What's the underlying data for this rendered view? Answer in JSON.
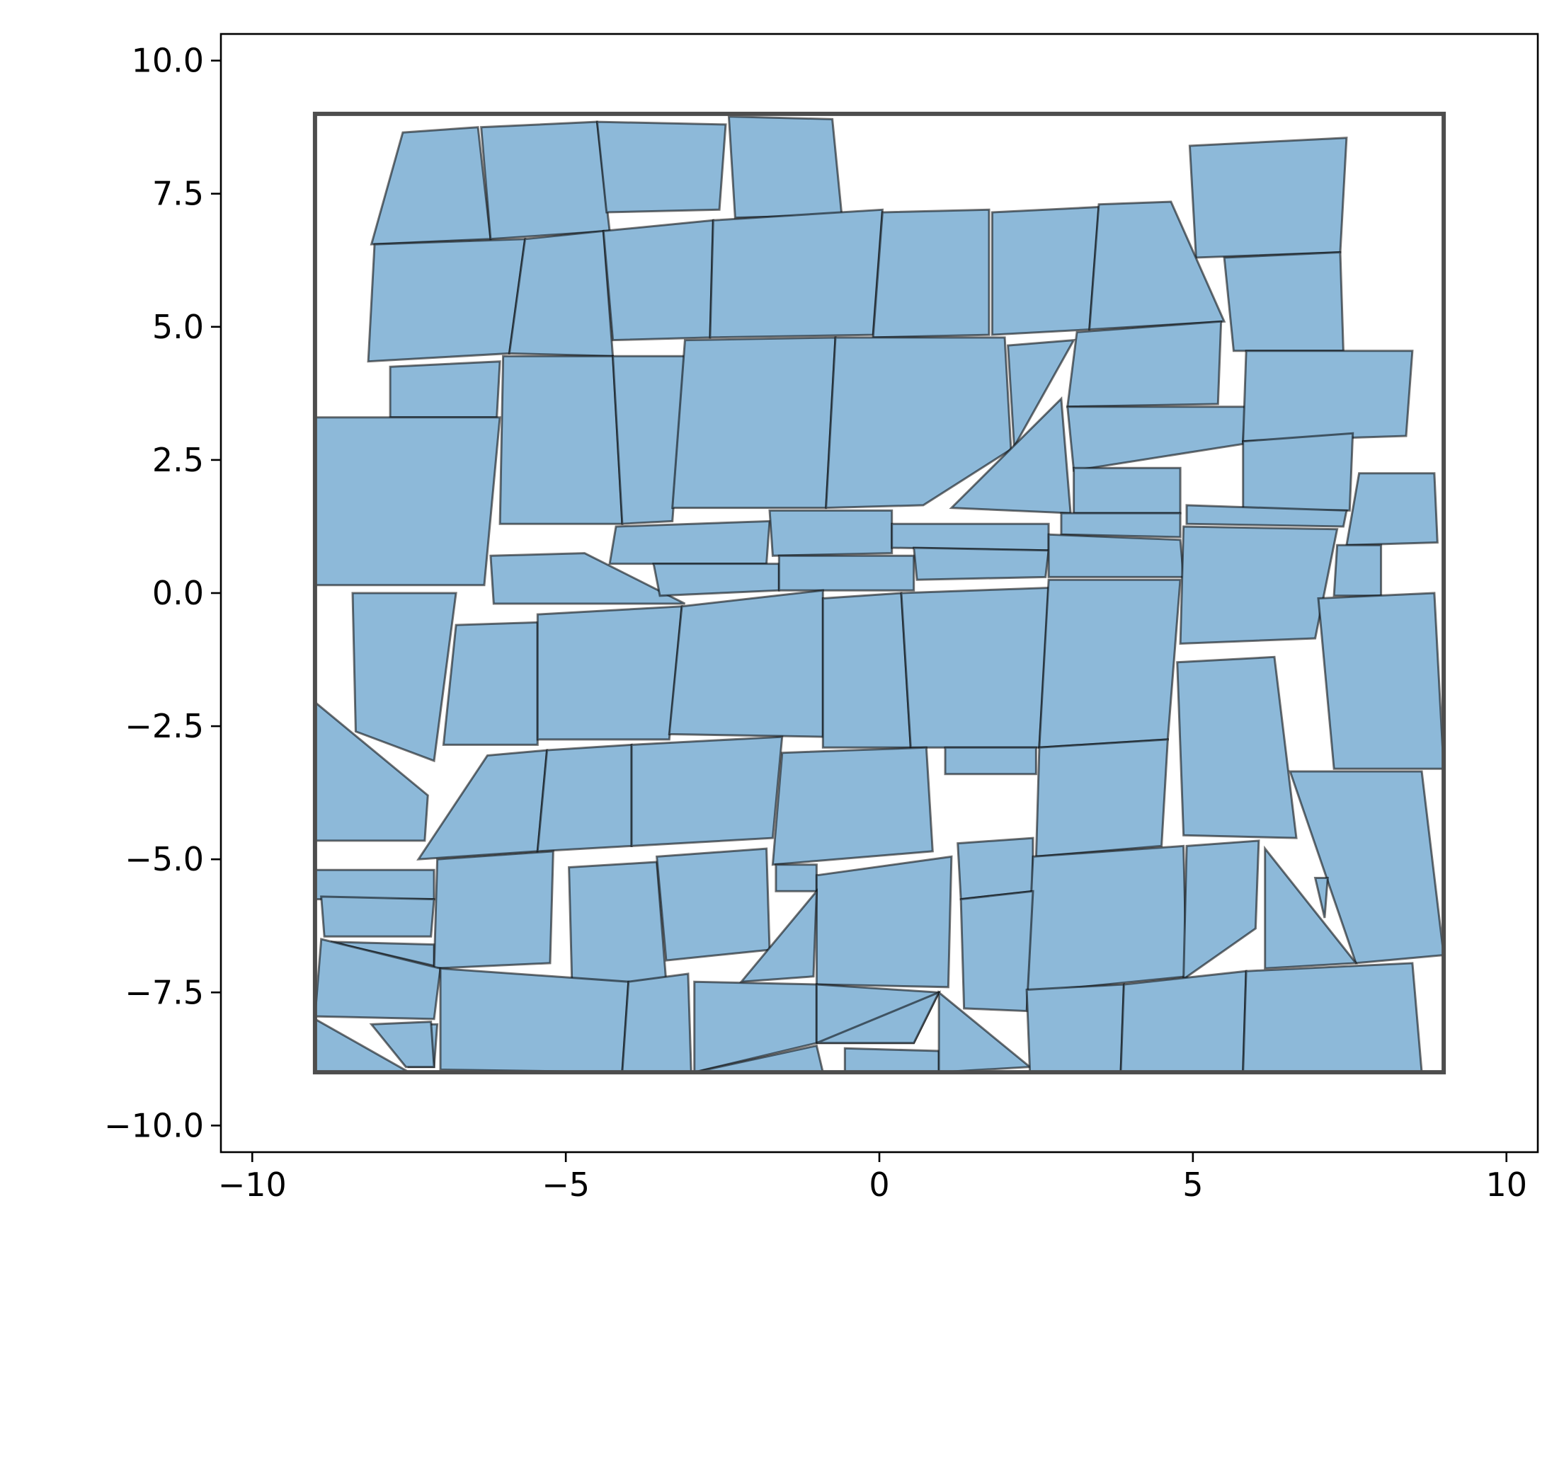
{
  "chart_data": {
    "type": "polygons",
    "title": "",
    "xlabel": "",
    "ylabel": "",
    "xlim": [
      -10.5,
      10.5
    ],
    "ylim": [
      -10.5,
      10.5
    ],
    "aspect": "equal",
    "grid": false,
    "legend": "none",
    "x_ticks": [
      "−10",
      "−5",
      "0",
      "5",
      "10"
    ],
    "x_tick_values": [
      -10,
      -5,
      0,
      5,
      10
    ],
    "y_ticks": [
      "10.0",
      "7.5",
      "5.0",
      "2.5",
      "0.0",
      "−2.5",
      "−5.0",
      "−7.5",
      "−10.0"
    ],
    "y_tick_values": [
      10,
      7.5,
      5,
      2.5,
      0,
      -2.5,
      -5,
      -7.5,
      -10
    ],
    "fill_color": "#8db9d9",
    "edge_color": "#1a1a1a",
    "boundary_color": "#4d4d4d",
    "boundary": [
      [
        -9,
        9
      ],
      [
        9,
        9
      ],
      [
        9,
        -9
      ],
      [
        -9,
        -9
      ]
    ],
    "polygons": [
      [
        [
          -8.1,
          6.55
        ],
        [
          -7.6,
          8.65
        ],
        [
          -6.4,
          8.75
        ],
        [
          -6.2,
          6.65
        ]
      ],
      [
        [
          -6.2,
          6.65
        ],
        [
          -6.35,
          8.75
        ],
        [
          -4.5,
          8.85
        ],
        [
          -4.3,
          6.8
        ]
      ],
      [
        [
          -4.5,
          8.85
        ],
        [
          -2.45,
          8.8
        ],
        [
          -2.55,
          7.2
        ],
        [
          -4.35,
          7.15
        ]
      ],
      [
        [
          -2.4,
          8.95
        ],
        [
          -0.75,
          8.9
        ],
        [
          -0.6,
          7.1
        ],
        [
          -2.3,
          7.05
        ]
      ],
      [
        [
          4.95,
          8.4
        ],
        [
          7.45,
          8.55
        ],
        [
          7.35,
          6.4
        ],
        [
          5.05,
          6.3
        ]
      ],
      [
        [
          -8.05,
          6.55
        ],
        [
          -5.65,
          6.65
        ],
        [
          -5.9,
          4.5
        ],
        [
          -8.15,
          4.35
        ]
      ],
      [
        [
          -5.65,
          6.65
        ],
        [
          -4.4,
          6.8
        ],
        [
          -4.25,
          4.45
        ],
        [
          -5.9,
          4.5
        ]
      ],
      [
        [
          -4.4,
          6.8
        ],
        [
          -2.65,
          7.0
        ],
        [
          -2.7,
          4.8
        ],
        [
          -4.25,
          4.75
        ]
      ],
      [
        [
          -2.65,
          7.0
        ],
        [
          0.05,
          7.2
        ],
        [
          -0.1,
          4.85
        ],
        [
          -2.7,
          4.8
        ]
      ],
      [
        [
          0.05,
          7.15
        ],
        [
          1.75,
          7.2
        ],
        [
          1.75,
          4.85
        ],
        [
          -0.1,
          4.8
        ]
      ],
      [
        [
          1.8,
          7.15
        ],
        [
          3.5,
          7.25
        ],
        [
          3.35,
          4.95
        ],
        [
          1.8,
          4.85
        ]
      ],
      [
        [
          3.5,
          7.3
        ],
        [
          4.65,
          7.35
        ],
        [
          5.5,
          5.1
        ],
        [
          3.35,
          4.95
        ]
      ],
      [
        [
          5.5,
          6.3
        ],
        [
          7.35,
          6.4
        ],
        [
          7.4,
          4.55
        ],
        [
          5.65,
          4.55
        ]
      ],
      [
        [
          -7.8,
          4.25
        ],
        [
          -6.05,
          4.35
        ],
        [
          -6.1,
          3.3
        ],
        [
          -7.8,
          3.3
        ]
      ],
      [
        [
          -9.0,
          3.3
        ],
        [
          -6.05,
          3.3
        ],
        [
          -6.3,
          0.15
        ],
        [
          -9.0,
          0.15
        ]
      ],
      [
        [
          -6.0,
          4.45
        ],
        [
          -4.25,
          4.45
        ],
        [
          -4.1,
          1.3
        ],
        [
          -6.05,
          1.3
        ]
      ],
      [
        [
          -4.25,
          4.45
        ],
        [
          -3.1,
          4.45
        ],
        [
          -3.3,
          1.35
        ],
        [
          -4.1,
          1.3
        ]
      ],
      [
        [
          -3.1,
          4.75
        ],
        [
          -0.7,
          4.8
        ],
        [
          -0.85,
          1.6
        ],
        [
          -3.3,
          1.6
        ]
      ],
      [
        [
          -0.7,
          4.8
        ],
        [
          2.0,
          4.8
        ],
        [
          2.1,
          2.7
        ],
        [
          0.7,
          1.65
        ],
        [
          -0.85,
          1.6
        ]
      ],
      [
        [
          2.05,
          4.65
        ],
        [
          3.1,
          4.75
        ],
        [
          2.15,
          2.75
        ]
      ],
      [
        [
          3.15,
          4.9
        ],
        [
          5.45,
          5.1
        ],
        [
          5.4,
          3.55
        ],
        [
          3.0,
          3.5
        ]
      ],
      [
        [
          2.9,
          3.65
        ],
        [
          1.15,
          1.6
        ],
        [
          3.05,
          1.5
        ]
      ],
      [
        [
          3.0,
          3.5
        ],
        [
          5.85,
          3.5
        ],
        [
          5.8,
          2.8
        ],
        [
          3.1,
          2.3
        ]
      ],
      [
        [
          3.1,
          2.35
        ],
        [
          4.8,
          2.35
        ],
        [
          4.8,
          1.5
        ],
        [
          3.1,
          1.5
        ]
      ],
      [
        [
          5.85,
          4.55
        ],
        [
          8.5,
          4.55
        ],
        [
          8.4,
          2.95
        ],
        [
          5.8,
          2.85
        ]
      ],
      [
        [
          5.8,
          2.85
        ],
        [
          7.55,
          3.0
        ],
        [
          7.5,
          1.55
        ],
        [
          5.8,
          1.55
        ]
      ],
      [
        [
          7.65,
          2.25
        ],
        [
          8.85,
          2.25
        ],
        [
          8.9,
          0.95
        ],
        [
          7.45,
          0.9
        ]
      ],
      [
        [
          7.3,
          0.9
        ],
        [
          8.0,
          0.9
        ],
        [
          8.0,
          -0.05
        ],
        [
          7.25,
          -0.05
        ]
      ],
      [
        [
          -4.2,
          1.25
        ],
        [
          -1.75,
          1.35
        ],
        [
          -1.8,
          0.55
        ],
        [
          -4.3,
          0.55
        ]
      ],
      [
        [
          -1.75,
          1.55
        ],
        [
          0.2,
          1.55
        ],
        [
          0.2,
          0.75
        ],
        [
          -1.7,
          0.7
        ]
      ],
      [
        [
          0.2,
          1.3
        ],
        [
          2.7,
          1.3
        ],
        [
          2.7,
          0.8
        ],
        [
          0.2,
          0.85
        ]
      ],
      [
        [
          2.9,
          1.5
        ],
        [
          4.8,
          1.5
        ],
        [
          4.8,
          1.05
        ],
        [
          2.9,
          1.1
        ]
      ],
      [
        [
          4.9,
          1.65
        ],
        [
          7.45,
          1.55
        ],
        [
          7.4,
          1.25
        ],
        [
          4.9,
          1.3
        ]
      ],
      [
        [
          -6.2,
          0.7
        ],
        [
          -4.7,
          0.75
        ],
        [
          -3.1,
          -0.2
        ],
        [
          -6.15,
          -0.2
        ]
      ],
      [
        [
          -3.6,
          0.55
        ],
        [
          -1.6,
          0.55
        ],
        [
          -1.6,
          0.05
        ],
        [
          -3.5,
          -0.05
        ]
      ],
      [
        [
          -1.6,
          0.7
        ],
        [
          0.55,
          0.7
        ],
        [
          0.55,
          0.05
        ],
        [
          -1.6,
          0.05
        ]
      ],
      [
        [
          0.55,
          0.85
        ],
        [
          2.7,
          0.8
        ],
        [
          2.65,
          0.3
        ],
        [
          0.6,
          0.25
        ]
      ],
      [
        [
          2.7,
          1.1
        ],
        [
          4.8,
          1.0
        ],
        [
          4.85,
          0.3
        ],
        [
          2.7,
          0.3
        ]
      ],
      [
        [
          4.85,
          1.25
        ],
        [
          7.3,
          1.2
        ],
        [
          6.95,
          -0.85
        ],
        [
          4.8,
          -0.95
        ]
      ],
      [
        [
          -8.4,
          0.0
        ],
        [
          -6.75,
          0.0
        ],
        [
          -7.1,
          -3.15
        ],
        [
          -8.35,
          -2.6
        ]
      ],
      [
        [
          -6.75,
          -0.6
        ],
        [
          -5.45,
          -0.55
        ],
        [
          -5.45,
          -2.85
        ],
        [
          -6.95,
          -2.85
        ]
      ],
      [
        [
          -5.45,
          -0.4
        ],
        [
          -3.15,
          -0.25
        ],
        [
          -3.35,
          -2.75
        ],
        [
          -5.45,
          -2.75
        ]
      ],
      [
        [
          -3.15,
          -0.25
        ],
        [
          -0.9,
          0.05
        ],
        [
          -0.9,
          -2.7
        ],
        [
          -3.35,
          -2.65
        ]
      ],
      [
        [
          -0.9,
          -0.1
        ],
        [
          0.35,
          0.0
        ],
        [
          0.5,
          -2.9
        ],
        [
          -0.9,
          -2.9
        ]
      ],
      [
        [
          0.35,
          0.0
        ],
        [
          2.7,
          0.1
        ],
        [
          2.55,
          -2.9
        ],
        [
          0.5,
          -2.9
        ]
      ],
      [
        [
          2.7,
          0.25
        ],
        [
          4.8,
          0.25
        ],
        [
          4.6,
          -2.75
        ],
        [
          2.55,
          -2.9
        ]
      ],
      [
        [
          7.0,
          -0.1
        ],
        [
          8.85,
          0.0
        ],
        [
          9.0,
          -3.3
        ],
        [
          7.25,
          -3.3
        ]
      ],
      [
        [
          4.75,
          -1.3
        ],
        [
          6.3,
          -1.2
        ],
        [
          6.65,
          -4.6
        ],
        [
          4.85,
          -4.55
        ]
      ],
      [
        [
          -9.0,
          -2.05
        ],
        [
          -7.2,
          -3.8
        ],
        [
          -7.25,
          -4.65
        ],
        [
          -9.0,
          -4.65
        ]
      ],
      [
        [
          -6.25,
          -3.05
        ],
        [
          -5.3,
          -2.95
        ],
        [
          -5.45,
          -4.85
        ],
        [
          -7.35,
          -5.0
        ]
      ],
      [
        [
          -5.3,
          -2.95
        ],
        [
          -3.95,
          -2.85
        ],
        [
          -3.95,
          -4.75
        ],
        [
          -5.45,
          -4.85
        ]
      ],
      [
        [
          -3.95,
          -2.85
        ],
        [
          -1.55,
          -2.7
        ],
        [
          -1.7,
          -4.6
        ],
        [
          -3.95,
          -4.75
        ]
      ],
      [
        [
          -1.55,
          -3.0
        ],
        [
          0.75,
          -2.9
        ],
        [
          0.85,
          -4.85
        ],
        [
          -1.7,
          -5.1
        ]
      ],
      [
        [
          1.05,
          -2.9
        ],
        [
          2.5,
          -2.9
        ],
        [
          2.5,
          -3.4
        ],
        [
          1.05,
          -3.4
        ]
      ],
      [
        [
          2.55,
          -2.9
        ],
        [
          4.6,
          -2.75
        ],
        [
          4.5,
          -4.75
        ],
        [
          2.5,
          -4.95
        ]
      ],
      [
        [
          6.55,
          -3.35
        ],
        [
          8.65,
          -3.35
        ],
        [
          9.0,
          -6.8
        ],
        [
          7.6,
          -6.95
        ]
      ],
      [
        [
          -9.0,
          -5.2
        ],
        [
          -7.1,
          -5.2
        ],
        [
          -7.1,
          -5.75
        ],
        [
          -9.0,
          -5.75
        ]
      ],
      [
        [
          -8.9,
          -5.7
        ],
        [
          -7.1,
          -5.75
        ],
        [
          -7.15,
          -6.45
        ],
        [
          -8.85,
          -6.45
        ]
      ],
      [
        [
          -8.75,
          -6.55
        ],
        [
          -7.1,
          -6.6
        ],
        [
          -7.1,
          -7.0
        ]
      ],
      [
        [
          -7.05,
          -5.0
        ],
        [
          -5.2,
          -4.85
        ],
        [
          -5.25,
          -6.95
        ],
        [
          -7.1,
          -7.05
        ]
      ],
      [
        [
          -4.95,
          -5.15
        ],
        [
          -3.55,
          -5.05
        ],
        [
          -3.4,
          -7.3
        ],
        [
          -4.9,
          -7.4
        ]
      ],
      [
        [
          -3.55,
          -4.95
        ],
        [
          -1.8,
          -4.8
        ],
        [
          -1.75,
          -6.7
        ],
        [
          -3.4,
          -6.9
        ]
      ],
      [
        [
          -1.65,
          -5.1
        ],
        [
          -1.0,
          -5.1
        ],
        [
          -1.0,
          -5.6
        ],
        [
          -1.65,
          -5.6
        ]
      ],
      [
        [
          -1.0,
          -5.3
        ],
        [
          1.15,
          -4.95
        ],
        [
          1.1,
          -7.4
        ],
        [
          -1.0,
          -7.35
        ]
      ],
      [
        [
          -1.0,
          -5.6
        ],
        [
          -1.05,
          -7.2
        ],
        [
          -2.2,
          -7.3
        ]
      ],
      [
        [
          1.25,
          -4.7
        ],
        [
          2.45,
          -4.6
        ],
        [
          2.45,
          -5.6
        ],
        [
          1.3,
          -5.75
        ]
      ],
      [
        [
          2.45,
          -4.95
        ],
        [
          4.85,
          -4.75
        ],
        [
          4.9,
          -7.2
        ],
        [
          2.35,
          -7.5
        ]
      ],
      [
        [
          4.9,
          -4.75
        ],
        [
          6.05,
          -4.65
        ],
        [
          6.0,
          -6.3
        ],
        [
          4.85,
          -7.25
        ]
      ],
      [
        [
          6.15,
          -4.8
        ],
        [
          7.6,
          -6.95
        ],
        [
          6.15,
          -7.05
        ]
      ],
      [
        [
          6.95,
          -5.35
        ],
        [
          7.15,
          -5.35
        ],
        [
          7.1,
          -6.1
        ]
      ],
      [
        [
          1.3,
          -5.75
        ],
        [
          2.45,
          -5.6
        ],
        [
          2.35,
          -7.85
        ],
        [
          1.35,
          -7.8
        ]
      ],
      [
        [
          -8.9,
          -6.5
        ],
        [
          -7.0,
          -7.05
        ],
        [
          -7.1,
          -8.0
        ],
        [
          -9.0,
          -7.95
        ]
      ],
      [
        [
          -7.0,
          -7.05
        ],
        [
          -4.0,
          -7.3
        ],
        [
          -4.1,
          -9.0
        ],
        [
          -7.0,
          -8.95
        ]
      ],
      [
        [
          -4.0,
          -7.3
        ],
        [
          -3.05,
          -7.15
        ],
        [
          -3.0,
          -9.0
        ],
        [
          -4.1,
          -9.0
        ]
      ],
      [
        [
          -2.95,
          -7.3
        ],
        [
          -1.0,
          -7.35
        ],
        [
          -1.0,
          -8.45
        ],
        [
          -2.95,
          -9.0
        ]
      ],
      [
        [
          -1.0,
          -7.35
        ],
        [
          0.95,
          -7.5
        ],
        [
          0.55,
          -8.45
        ],
        [
          -1.0,
          -8.45
        ]
      ],
      [
        [
          -1.0,
          -8.45
        ],
        [
          0.95,
          -7.5
        ],
        [
          0.55,
          -8.45
        ]
      ],
      [
        [
          -2.95,
          -9.0
        ],
        [
          -1.0,
          -8.5
        ],
        [
          -0.9,
          -9.0
        ]
      ],
      [
        [
          -0.55,
          -8.55
        ],
        [
          0.95,
          -8.6
        ],
        [
          0.95,
          -9.0
        ],
        [
          -0.55,
          -9.0
        ]
      ],
      [
        [
          0.95,
          -7.5
        ],
        [
          2.4,
          -8.9
        ],
        [
          0.95,
          -9.0
        ]
      ],
      [
        [
          2.35,
          -7.45
        ],
        [
          3.9,
          -7.35
        ],
        [
          3.85,
          -9.0
        ],
        [
          2.4,
          -9.0
        ]
      ],
      [
        [
          3.9,
          -7.35
        ],
        [
          5.85,
          -7.1
        ],
        [
          5.8,
          -9.0
        ],
        [
          3.85,
          -9.0
        ]
      ],
      [
        [
          5.85,
          -7.1
        ],
        [
          8.5,
          -6.95
        ],
        [
          8.65,
          -9.0
        ],
        [
          5.8,
          -9.0
        ]
      ],
      [
        [
          -7.2,
          -8.1
        ],
        [
          -7.05,
          -8.1
        ],
        [
          -7.1,
          -8.9
        ],
        [
          -7.5,
          -8.9
        ]
      ],
      [
        [
          -9.0,
          -8.0
        ],
        [
          -7.5,
          -9.0
        ],
        [
          -9.0,
          -9.0
        ]
      ],
      [
        [
          -8.1,
          -8.1
        ],
        [
          -7.15,
          -8.05
        ],
        [
          -7.1,
          -8.9
        ],
        [
          -7.55,
          -8.9
        ]
      ]
    ]
  }
}
